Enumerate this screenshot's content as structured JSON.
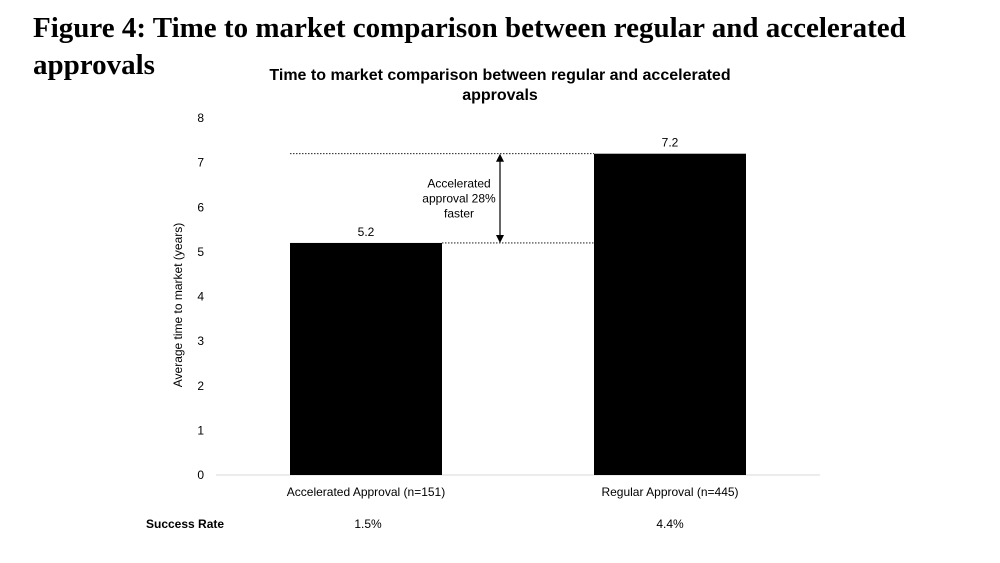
{
  "figure": {
    "title_line1": "Figure 4: Time to market comparison between regular and accelerated",
    "title_line2": "approvals"
  },
  "chart_data": {
    "type": "bar",
    "title_line1": "Time to market comparison between regular and accelerated",
    "title_line2": "approvals",
    "ylabel": "Average time to market (years)",
    "xlabel": "",
    "ylim": [
      0,
      8
    ],
    "yticks": [
      "0",
      "1",
      "2",
      "3",
      "4",
      "5",
      "6",
      "7",
      "8"
    ],
    "categories": [
      "Accelerated Approval (n=151)",
      "Regular Approval (n=445)"
    ],
    "values": [
      5.2,
      7.2
    ],
    "data_labels": [
      "5.2",
      "7.2"
    ],
    "bar_color": "#000000",
    "grid": false,
    "annotation": {
      "lines": [
        "Accelerated",
        "approval 28%",
        "faster"
      ],
      "from": 5.2,
      "to": 7.2
    }
  },
  "success_rate": {
    "label": "Success Rate",
    "values": [
      "1.5%",
      "4.4%"
    ]
  }
}
